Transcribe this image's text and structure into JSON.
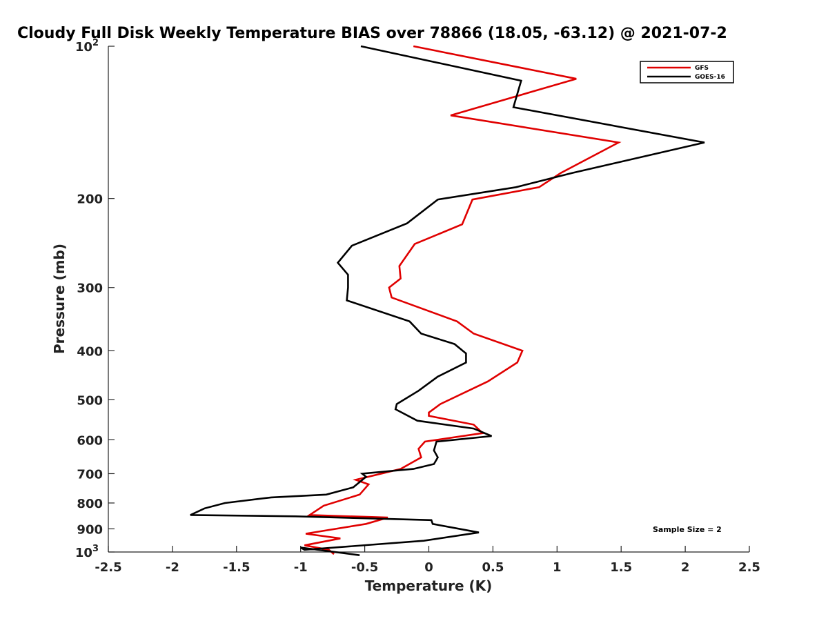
{
  "chart_data": {
    "type": "line",
    "title": "Cloudy Full Disk Weekly Temperature BIAS over 78866 (18.05, -63.12) @ 2021-07-2",
    "xlabel": "Temperature (K)",
    "ylabel": "Pressure (mb)",
    "xlim": [
      -2.5,
      2.5
    ],
    "ylim": [
      100,
      1000
    ],
    "y_scale": "log",
    "y_direction": "reversed",
    "xticks": [
      "-2.5",
      "-2",
      "-1.5",
      "-1",
      "-0.5",
      "0",
      "0.5",
      "1",
      "1.5",
      "2",
      "2.5"
    ],
    "yticks": [
      {
        "value": 100,
        "label": "10",
        "sup": "2"
      },
      {
        "value": 200,
        "label": "200",
        "sup": ""
      },
      {
        "value": 300,
        "label": "300",
        "sup": ""
      },
      {
        "value": 400,
        "label": "400",
        "sup": ""
      },
      {
        "value": 500,
        "label": "500",
        "sup": ""
      },
      {
        "value": 600,
        "label": "600",
        "sup": ""
      },
      {
        "value": 700,
        "label": "700",
        "sup": ""
      },
      {
        "value": 800,
        "label": "800",
        "sup": ""
      },
      {
        "value": 900,
        "label": "900",
        "sup": ""
      },
      {
        "value": 1000,
        "label": "10",
        "sup": "3"
      }
    ],
    "grid": false,
    "legend_position": "top-right",
    "annotation": "Sample Size = 2",
    "series": [
      {
        "name": "GFS",
        "color": "#e00000",
        "x": [
          -0.12,
          1.15,
          0.17,
          1.48,
          1.03,
          0.86,
          0.34,
          0.26,
          -0.11,
          -0.23,
          -0.22,
          -0.31,
          -0.29,
          0.22,
          0.35,
          0.73,
          0.69,
          0.46,
          0.09,
          0.0,
          0.0,
          0.35,
          0.42,
          -0.03,
          -0.08,
          -0.06,
          -0.22,
          -0.57,
          -0.47,
          -0.54,
          -0.82,
          -0.93,
          -0.32,
          -0.49,
          -0.96,
          -0.69,
          -0.97,
          -0.78,
          -0.74
        ],
        "y": [
          100,
          116,
          137,
          155,
          178,
          190,
          201,
          225,
          246,
          272,
          288,
          300,
          314,
          350,
          370,
          400,
          422,
          460,
          510,
          530,
          538,
          560,
          582,
          605,
          625,
          650,
          685,
          720,
          735,
          770,
          810,
          845,
          855,
          880,
          920,
          940,
          970,
          990,
          1010
        ]
      },
      {
        "name": "GOES-16",
        "color": "#000000",
        "x": [
          -0.53,
          0.72,
          0.66,
          2.15,
          1.12,
          0.68,
          0.07,
          -0.17,
          -0.6,
          -0.71,
          -0.63,
          -0.63,
          -0.64,
          -0.15,
          -0.06,
          0.2,
          0.29,
          0.29,
          0.07,
          -0.08,
          -0.25,
          -0.26,
          -0.09,
          0.35,
          0.49,
          0.06,
          0.04,
          0.07,
          0.04,
          -0.12,
          -0.52,
          -0.49,
          -0.59,
          -0.8,
          -1.23,
          -1.59,
          -1.75,
          -1.86,
          -1.04,
          0.02,
          0.03,
          0.39,
          -0.04,
          -0.97,
          -1.0,
          -0.54
        ],
        "y": [
          100,
          117,
          132,
          155,
          178,
          190,
          201,
          224,
          248,
          268,
          283,
          300,
          318,
          350,
          370,
          388,
          405,
          422,
          450,
          480,
          510,
          522,
          550,
          570,
          590,
          605,
          630,
          650,
          670,
          685,
          700,
          710,
          745,
          770,
          780,
          800,
          820,
          845,
          850,
          865,
          880,
          915,
          950,
          990,
          980,
          1015
        ]
      }
    ]
  }
}
